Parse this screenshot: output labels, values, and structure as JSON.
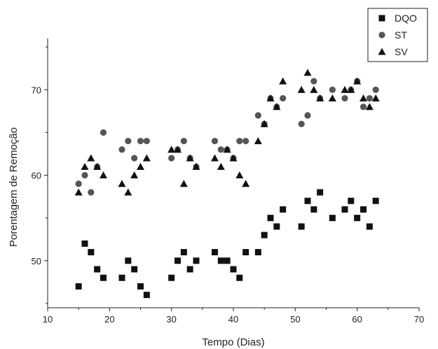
{
  "chart_data": {
    "type": "scatter",
    "title": "",
    "xlabel": "Tempo (Dias)",
    "ylabel": "Porentagem de Remoção",
    "xlim": [
      10,
      70
    ],
    "ylim": [
      44.5,
      76
    ],
    "xticks": [
      10,
      20,
      30,
      40,
      50,
      60,
      70
    ],
    "yticks": [
      50,
      60,
      70
    ],
    "grid": false,
    "legend_position": "top-right",
    "series": [
      {
        "name": "DQO",
        "marker": "square",
        "color": "#111111",
        "points": [
          [
            15,
            47
          ],
          [
            16,
            52
          ],
          [
            17,
            51
          ],
          [
            18,
            49
          ],
          [
            19,
            48
          ],
          [
            22,
            48
          ],
          [
            23,
            50
          ],
          [
            24,
            49
          ],
          [
            25,
            47
          ],
          [
            26,
            46
          ],
          [
            30,
            48
          ],
          [
            31,
            50
          ],
          [
            32,
            51
          ],
          [
            33,
            49
          ],
          [
            34,
            50
          ],
          [
            37,
            51
          ],
          [
            38,
            50
          ],
          [
            39,
            50
          ],
          [
            40,
            49
          ],
          [
            41,
            48
          ],
          [
            42,
            51
          ],
          [
            44,
            51
          ],
          [
            45,
            53
          ],
          [
            46,
            55
          ],
          [
            47,
            54
          ],
          [
            48,
            56
          ],
          [
            51,
            54
          ],
          [
            52,
            57
          ],
          [
            53,
            56
          ],
          [
            54,
            58
          ],
          [
            56,
            55
          ],
          [
            58,
            56
          ],
          [
            59,
            57
          ],
          [
            60,
            55
          ],
          [
            61,
            56
          ],
          [
            62,
            54
          ],
          [
            63,
            57
          ]
        ]
      },
      {
        "name": "ST",
        "marker": "circle",
        "color": "#555555",
        "points": [
          [
            15,
            59
          ],
          [
            16,
            60
          ],
          [
            17,
            58
          ],
          [
            18,
            61
          ],
          [
            19,
            65
          ],
          [
            22,
            63
          ],
          [
            23,
            64
          ],
          [
            24,
            62
          ],
          [
            25,
            64
          ],
          [
            26,
            64
          ],
          [
            30,
            62
          ],
          [
            31,
            63
          ],
          [
            32,
            64
          ],
          [
            33,
            62
          ],
          [
            34,
            61
          ],
          [
            37,
            64
          ],
          [
            38,
            63
          ],
          [
            39,
            63
          ],
          [
            40,
            62
          ],
          [
            41,
            64
          ],
          [
            42,
            64
          ],
          [
            44,
            67
          ],
          [
            45,
            66
          ],
          [
            46,
            69
          ],
          [
            47,
            68
          ],
          [
            48,
            69
          ],
          [
            51,
            66
          ],
          [
            52,
            67
          ],
          [
            53,
            71
          ],
          [
            54,
            69
          ],
          [
            56,
            70
          ],
          [
            58,
            69
          ],
          [
            59,
            70
          ],
          [
            60,
            71
          ],
          [
            61,
            68
          ],
          [
            62,
            69
          ],
          [
            63,
            70
          ]
        ]
      },
      {
        "name": "SV",
        "marker": "triangle",
        "color": "#111111",
        "points": [
          [
            15,
            58
          ],
          [
            16,
            61
          ],
          [
            17,
            62
          ],
          [
            18,
            61
          ],
          [
            19,
            60
          ],
          [
            22,
            59
          ],
          [
            23,
            58
          ],
          [
            24,
            60
          ],
          [
            25,
            61
          ],
          [
            26,
            62
          ],
          [
            30,
            63
          ],
          [
            31,
            63
          ],
          [
            32,
            59
          ],
          [
            33,
            62
          ],
          [
            34,
            61
          ],
          [
            37,
            62
          ],
          [
            38,
            61
          ],
          [
            39,
            63
          ],
          [
            40,
            62
          ],
          [
            41,
            60
          ],
          [
            42,
            59
          ],
          [
            44,
            64
          ],
          [
            45,
            66
          ],
          [
            46,
            69
          ],
          [
            47,
            68
          ],
          [
            48,
            71
          ],
          [
            51,
            70
          ],
          [
            52,
            72
          ],
          [
            53,
            70
          ],
          [
            54,
            69
          ],
          [
            56,
            69
          ],
          [
            58,
            70
          ],
          [
            59,
            70
          ],
          [
            60,
            71
          ],
          [
            61,
            69
          ],
          [
            62,
            68
          ],
          [
            63,
            69
          ]
        ]
      }
    ]
  }
}
